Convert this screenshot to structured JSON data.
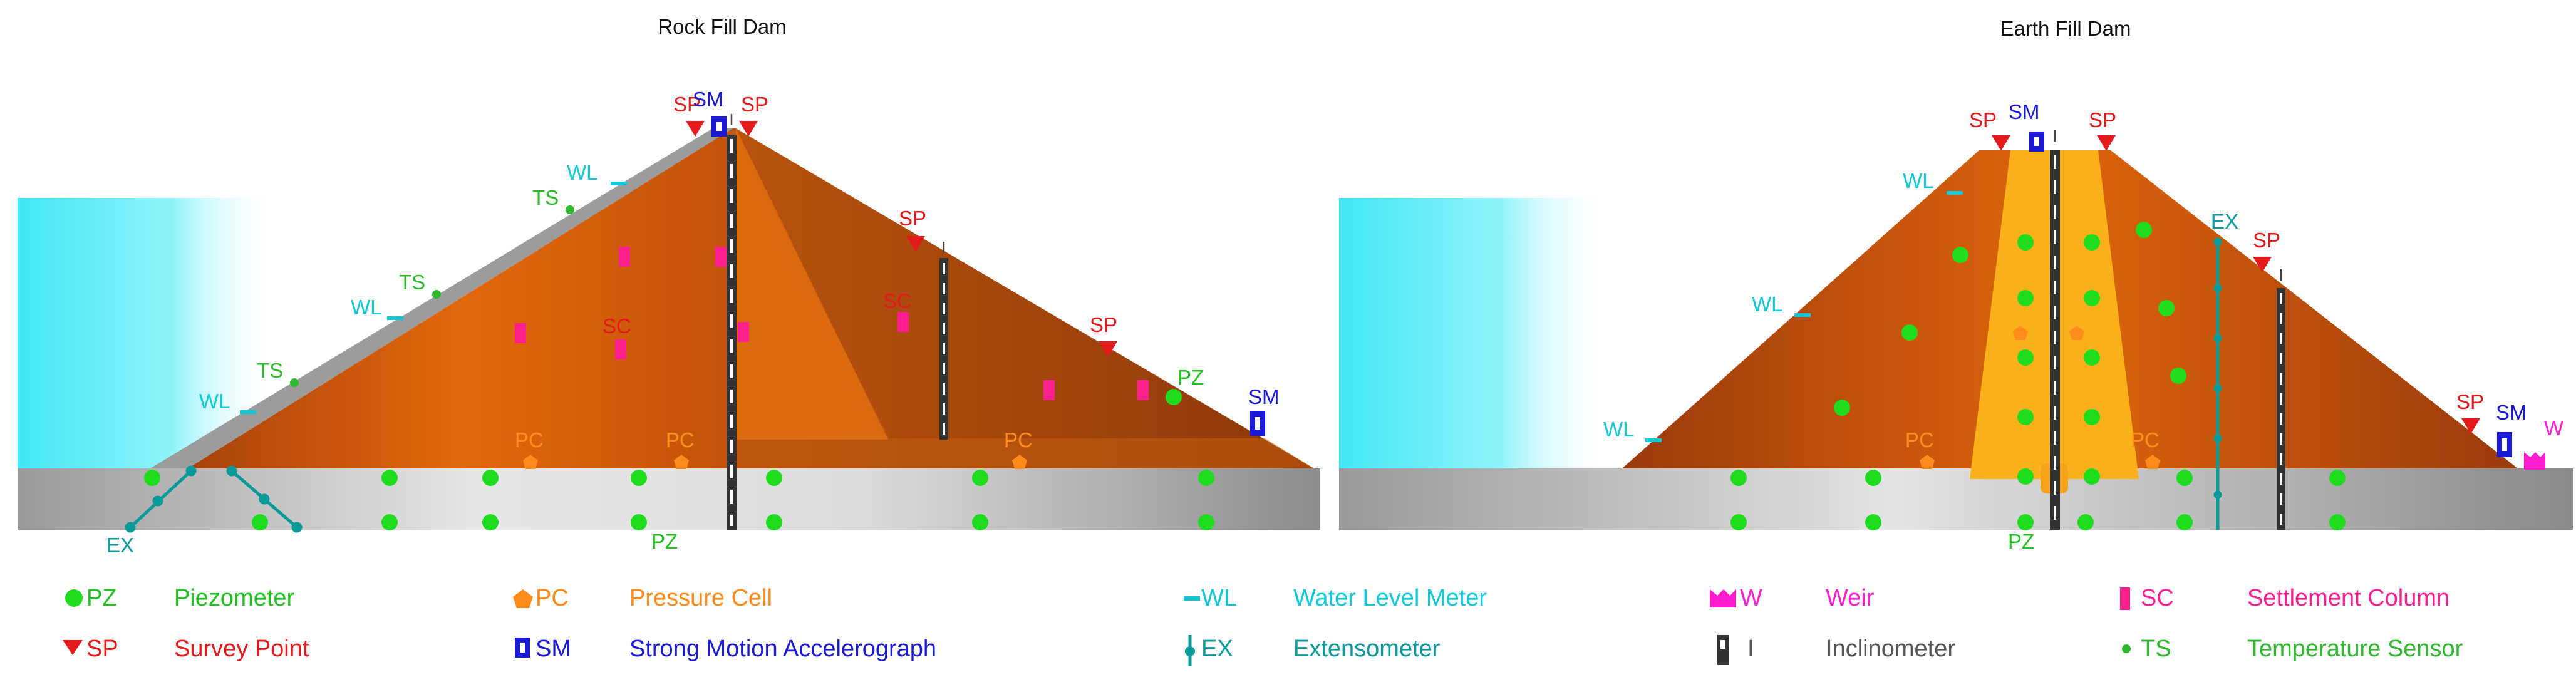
{
  "titles": {
    "left": "Rock Fill Dam",
    "right": "Earth Fill Dam"
  },
  "labels": {
    "PZ": "PZ",
    "SP": "SP",
    "SM": "SM",
    "PC": "PC",
    "WL": "WL",
    "EX": "EX",
    "TS": "TS",
    "SC": "SC",
    "I": "I",
    "W": "W"
  },
  "legend": [
    {
      "abbr": "PZ",
      "name": "Piezometer",
      "symbol": "circle",
      "color": "#1fbf1f",
      "text_color": "#22c022"
    },
    {
      "abbr": "SP",
      "name": "Survey Point",
      "symbol": "triangle",
      "color": "#e31a1c",
      "text_color": "#e31a1c"
    },
    {
      "abbr": "PC",
      "name": "Pressure Cell",
      "symbol": "pentagon",
      "color": "#ff8c1a",
      "text_color": "#ff8c1a"
    },
    {
      "abbr": "SM",
      "name": "Strong Motion Accelerograph",
      "symbol": "sm-box",
      "color": "#1a1ad6",
      "text_color": "#1a1ad6"
    },
    {
      "abbr": "WL",
      "name": "Water Level Meter",
      "symbol": "dash",
      "color": "#10c8d8",
      "text_color": "#10c8d8"
    },
    {
      "abbr": "EX",
      "name": "Extensometer",
      "symbol": "ex",
      "color": "#0a9a9a",
      "text_color": "#0a9a9a"
    },
    {
      "abbr": "W",
      "name": "Weir",
      "symbol": "weir",
      "color": "#ff1fd0",
      "text_color": "#ff1fd0"
    },
    {
      "abbr": "I",
      "name": "Inclinometer",
      "symbol": "incl",
      "color": "#333333",
      "text_color": "#555555"
    },
    {
      "abbr": "SC",
      "name": "Settlement Column",
      "symbol": "bar",
      "color": "#ff1f8f",
      "text_color": "#ff1f8f"
    },
    {
      "abbr": "TS",
      "name": "Temperature Sensor",
      "symbol": "dot",
      "color": "#2eb82e",
      "text_color": "#2eb82e"
    }
  ],
  "colors": {
    "water": "#43e8f5",
    "fill_dark": "#b0460c",
    "fill_mid": "#e0620a",
    "fill_light": "#ff7d14",
    "core": "#fbb21a",
    "foundation_light": "#e4e4e4",
    "foundation_dark": "#8a8a8a",
    "face": "#9b9b9b"
  }
}
